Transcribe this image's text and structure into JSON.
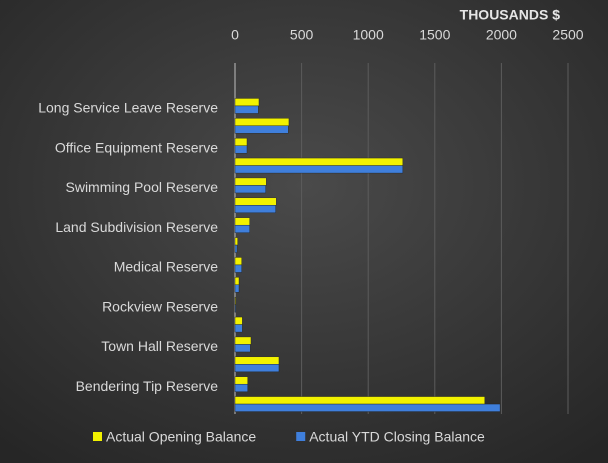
{
  "chart_data": {
    "type": "barh",
    "axis_label": "THOUSANDS $",
    "categories": [
      "Long Service Leave Reserve",
      null,
      "Office Equipment Reserve",
      null,
      "Swimming Pool Reserve",
      null,
      "Land Subdivision Reserve",
      null,
      "Medical Reserve",
      null,
      "Rockview Reserve",
      null,
      "Town Hall Reserve",
      null,
      "Bendering Tip Reserve",
      null
    ],
    "series": [
      {
        "name": "Actual Opening Balance",
        "color": "#f2f200",
        "values": [
          180,
          405,
          90,
          1260,
          235,
          310,
          110,
          20,
          50,
          30,
          5,
          55,
          120,
          330,
          95,
          1875
        ]
      },
      {
        "name": "Actual YTD Closing Balance",
        "color": "#3f7fdc",
        "values": [
          175,
          400,
          90,
          1260,
          230,
          305,
          110,
          15,
          50,
          30,
          5,
          55,
          115,
          330,
          95,
          1990
        ]
      }
    ],
    "xlim": [
      0,
      2500
    ],
    "xticks": [
      0,
      500,
      1000,
      1500,
      2000,
      2500
    ],
    "grid": true,
    "legend": "bottom"
  }
}
